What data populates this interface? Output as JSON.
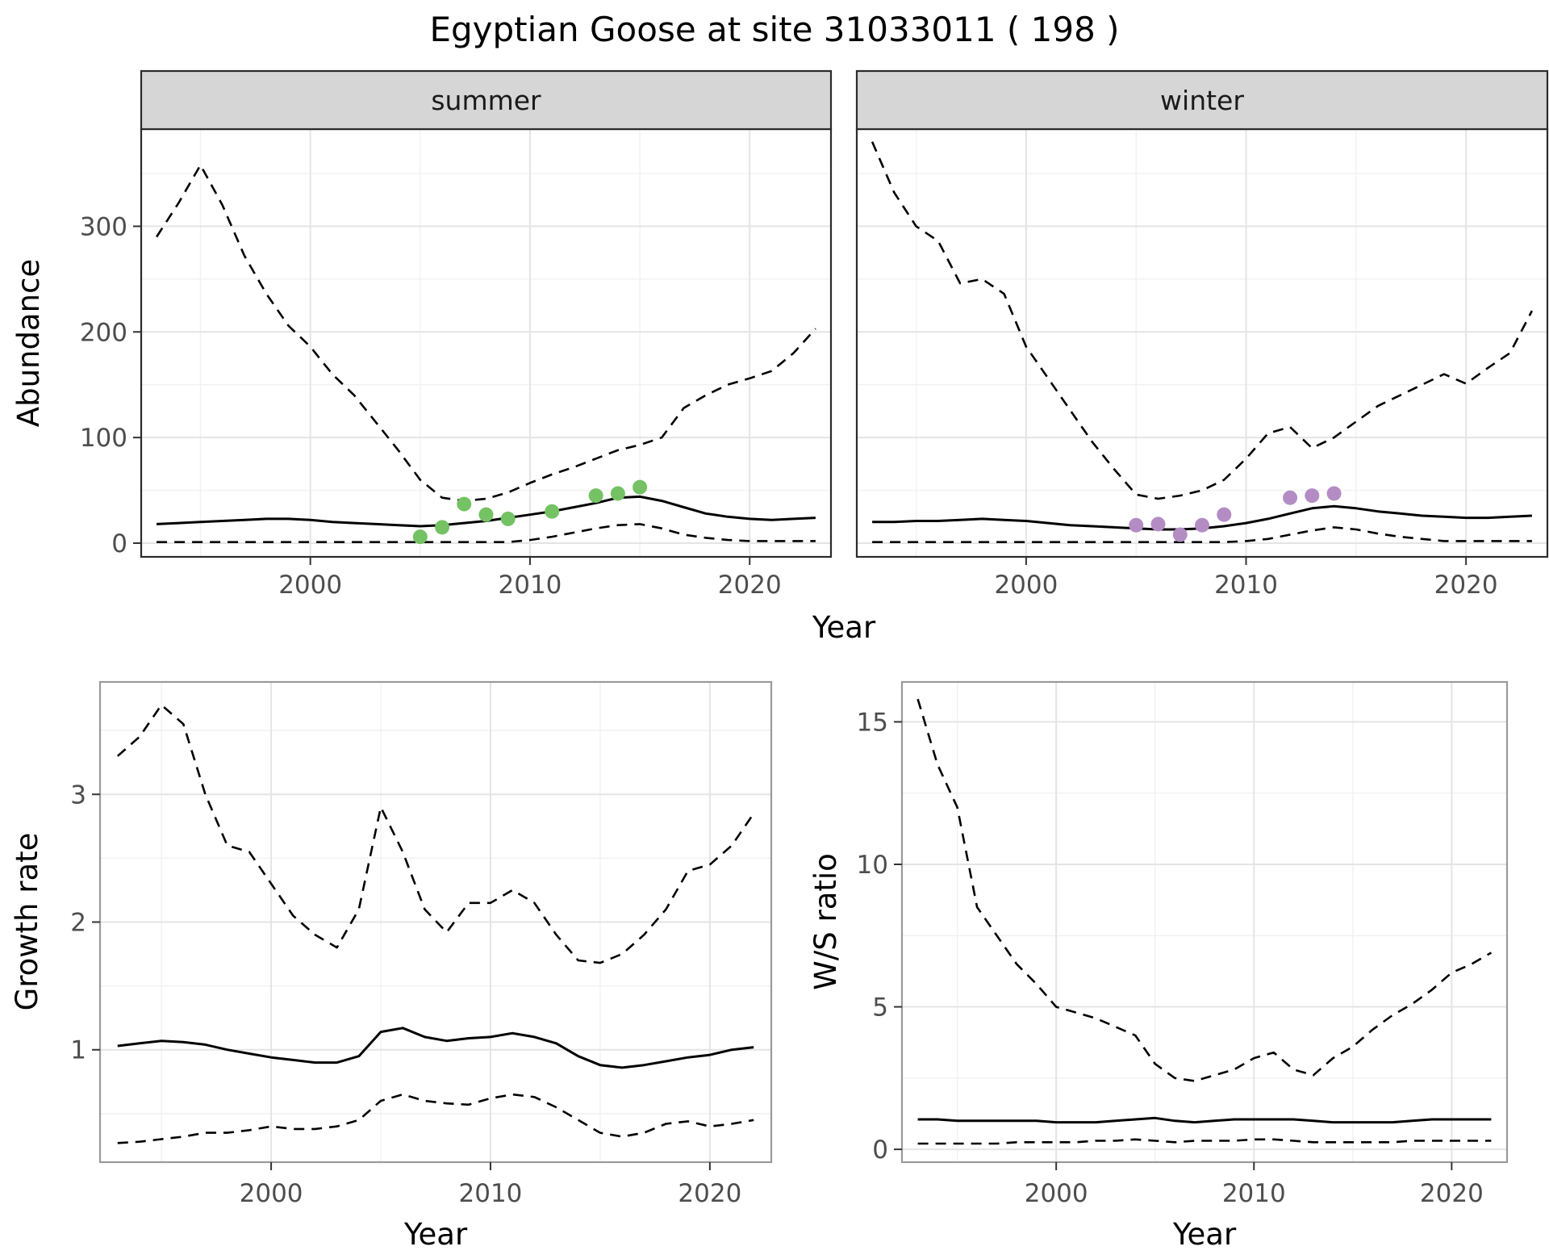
{
  "title": "Egyptian Goose at site 31033011 ( 198 )",
  "colors": {
    "summer_points": "#74c264",
    "winter_points": "#b48cc4",
    "line": "#000000",
    "strip_bg": "#d6d6d6",
    "strip_text": "#1a1a1a",
    "grid_major": "#e4e4e4",
    "grid_minor": "#f1f1f1",
    "tick_label": "#4d4d4d",
    "panel_border_top": "#2b2b2b",
    "panel_border_bottom": "#9a9a9a"
  },
  "chart_data": [
    {
      "id": "abundance-summer",
      "type": "line",
      "facet": "summer",
      "xlabel": "Year",
      "ylabel": "Abundance",
      "xlim": [
        1992.3,
        2023.7
      ],
      "ylim": [
        -13,
        392
      ],
      "xticks": [
        2000,
        2010,
        2020
      ],
      "yticks": [
        0,
        100,
        200,
        300
      ],
      "xticks_minor": [
        1995,
        2005,
        2015
      ],
      "yticks_minor": [
        50,
        150,
        250,
        350
      ],
      "x": [
        1993,
        1994,
        1995,
        1996,
        1997,
        1998,
        1999,
        2000,
        2001,
        2002,
        2003,
        2004,
        2005,
        2006,
        2007,
        2008,
        2009,
        2010,
        2011,
        2012,
        2013,
        2014,
        2015,
        2016,
        2017,
        2018,
        2019,
        2020,
        2021,
        2022,
        2023
      ],
      "series": [
        {
          "name": "upper-95ci",
          "style": "dashed",
          "y": [
            290,
            322,
            358,
            320,
            272,
            236,
            206,
            186,
            160,
            140,
            114,
            88,
            60,
            43,
            40,
            42,
            48,
            57,
            65,
            72,
            80,
            88,
            93,
            100,
            128,
            140,
            150,
            156,
            163,
            180,
            203
          ]
        },
        {
          "name": "modelled-median",
          "style": "solid",
          "y": [
            18,
            19,
            20,
            21,
            22,
            23,
            23,
            22,
            20,
            19,
            18,
            17,
            16,
            17,
            19,
            21,
            24,
            27,
            30,
            34,
            38,
            43,
            44,
            40,
            34,
            28,
            25,
            23,
            22,
            23,
            24
          ]
        },
        {
          "name": "lower-95ci",
          "style": "dashed",
          "y": [
            1,
            1,
            1,
            1,
            1,
            1,
            1,
            1,
            1,
            1,
            1,
            1,
            1,
            1,
            1,
            1,
            1,
            3,
            6,
            10,
            14,
            17,
            18,
            14,
            8,
            5,
            3,
            2,
            2,
            2,
            2
          ]
        },
        {
          "name": "observed-counts",
          "style": "points",
          "color": "#74c264",
          "x": [
            2005,
            2006,
            2007,
            2008,
            2009,
            2011,
            2013,
            2014,
            2015
          ],
          "y": [
            6,
            15,
            37,
            27,
            23,
            30,
            45,
            47,
            53
          ]
        }
      ]
    },
    {
      "id": "abundance-winter",
      "type": "line",
      "facet": "winter",
      "xlabel": "",
      "ylabel": "",
      "xlim": [
        1992.3,
        2023.7
      ],
      "ylim": [
        -13,
        392
      ],
      "xticks": [
        2000,
        2010,
        2020
      ],
      "yticks": [
        0,
        100,
        200,
        300
      ],
      "xticks_minor": [
        1995,
        2005,
        2015
      ],
      "yticks_minor": [
        50,
        150,
        250,
        350
      ],
      "x": [
        1993,
        1994,
        1995,
        1996,
        1997,
        1998,
        1999,
        2000,
        2001,
        2002,
        2003,
        2004,
        2005,
        2006,
        2007,
        2008,
        2009,
        2010,
        2011,
        2012,
        2013,
        2014,
        2015,
        2016,
        2017,
        2018,
        2019,
        2020,
        2021,
        2022,
        2023
      ],
      "series": [
        {
          "name": "upper-95ci",
          "style": "dashed",
          "y": [
            380,
            332,
            300,
            286,
            246,
            250,
            236,
            186,
            156,
            126,
            96,
            70,
            46,
            42,
            45,
            50,
            60,
            80,
            104,
            110,
            90,
            100,
            115,
            130,
            140,
            150,
            160,
            151,
            166,
            180,
            220
          ]
        },
        {
          "name": "modelled-median",
          "style": "solid",
          "y": [
            20,
            20,
            21,
            21,
            22,
            23,
            22,
            21,
            19,
            17,
            16,
            15,
            14,
            13,
            13,
            14,
            16,
            19,
            23,
            28,
            33,
            35,
            33,
            30,
            28,
            26,
            25,
            24,
            24,
            25,
            26
          ]
        },
        {
          "name": "lower-95ci",
          "style": "dashed",
          "y": [
            1,
            1,
            1,
            1,
            1,
            1,
            1,
            1,
            1,
            1,
            1,
            1,
            1,
            1,
            1,
            1,
            1,
            2,
            4,
            8,
            12,
            15,
            13,
            9,
            6,
            4,
            2,
            2,
            2,
            2,
            2
          ]
        },
        {
          "name": "observed-counts",
          "style": "points",
          "color": "#b48cc4",
          "x": [
            2005,
            2006,
            2007,
            2008,
            2009,
            2012,
            2013,
            2014
          ],
          "y": [
            17,
            18,
            8,
            17,
            27,
            43,
            45,
            47
          ]
        }
      ]
    },
    {
      "id": "growth-rate",
      "type": "line",
      "facet": "",
      "xlabel": "Year",
      "ylabel": "Growth rate",
      "xlim": [
        1992.2,
        2022.8
      ],
      "ylim": [
        0.12,
        3.88
      ],
      "xticks": [
        2000,
        2010,
        2020
      ],
      "yticks": [
        1,
        2,
        3
      ],
      "xticks_minor": [
        1995,
        2005,
        2015
      ],
      "yticks_minor": [
        0.5,
        1.5,
        2.5,
        3.5
      ],
      "x": [
        1993,
        1994,
        1995,
        1996,
        1997,
        1998,
        1999,
        2000,
        2001,
        2002,
        2003,
        2004,
        2005,
        2006,
        2007,
        2008,
        2009,
        2010,
        2011,
        2012,
        2013,
        2014,
        2015,
        2016,
        2017,
        2018,
        2019,
        2020,
        2021,
        2022
      ],
      "series": [
        {
          "name": "upper-95ci",
          "style": "dashed",
          "y": [
            3.3,
            3.45,
            3.7,
            3.55,
            3.0,
            2.6,
            2.55,
            2.3,
            2.05,
            1.9,
            1.8,
            2.1,
            2.9,
            2.55,
            2.1,
            1.92,
            2.15,
            2.15,
            2.25,
            2.15,
            1.9,
            1.7,
            1.68,
            1.75,
            1.9,
            2.1,
            2.4,
            2.45,
            2.6,
            2.85
          ]
        },
        {
          "name": "modelled-median",
          "style": "solid",
          "y": [
            1.03,
            1.05,
            1.07,
            1.06,
            1.04,
            1.0,
            0.97,
            0.94,
            0.92,
            0.9,
            0.9,
            0.95,
            1.14,
            1.17,
            1.1,
            1.07,
            1.09,
            1.1,
            1.13,
            1.1,
            1.05,
            0.95,
            0.88,
            0.86,
            0.88,
            0.91,
            0.94,
            0.96,
            1.0,
            1.02
          ]
        },
        {
          "name": "lower-95ci",
          "style": "dashed",
          "y": [
            0.27,
            0.28,
            0.3,
            0.32,
            0.35,
            0.35,
            0.37,
            0.4,
            0.38,
            0.38,
            0.4,
            0.45,
            0.6,
            0.65,
            0.6,
            0.58,
            0.57,
            0.62,
            0.65,
            0.63,
            0.55,
            0.45,
            0.35,
            0.32,
            0.35,
            0.42,
            0.44,
            0.4,
            0.42,
            0.45
          ]
        }
      ]
    },
    {
      "id": "ws-ratio",
      "type": "line",
      "facet": "",
      "xlabel": "Year",
      "ylabel": "W/S ratio",
      "xlim": [
        1992.2,
        2022.8
      ],
      "ylim": [
        -0.45,
        16.4
      ],
      "xticks": [
        2000,
        2010,
        2020
      ],
      "yticks": [
        0,
        5,
        10,
        15
      ],
      "xticks_minor": [
        1995,
        2005,
        2015
      ],
      "yticks_minor": [
        2.5,
        7.5,
        12.5
      ],
      "x": [
        1993,
        1994,
        1995,
        1996,
        1997,
        1998,
        1999,
        2000,
        2001,
        2002,
        2003,
        2004,
        2005,
        2006,
        2007,
        2008,
        2009,
        2010,
        2011,
        2012,
        2013,
        2014,
        2015,
        2016,
        2017,
        2018,
        2019,
        2020,
        2021,
        2022
      ],
      "series": [
        {
          "name": "upper-95ci",
          "style": "dashed",
          "y": [
            15.8,
            13.5,
            12.0,
            8.5,
            7.5,
            6.5,
            5.8,
            5.0,
            4.8,
            4.6,
            4.3,
            4.0,
            3.0,
            2.5,
            2.4,
            2.6,
            2.8,
            3.2,
            3.4,
            2.8,
            2.6,
            3.2,
            3.6,
            4.2,
            4.7,
            5.1,
            5.6,
            6.2,
            6.5,
            6.9
          ]
        },
        {
          "name": "modelled-median",
          "style": "solid",
          "y": [
            1.05,
            1.05,
            1.0,
            1.0,
            1.0,
            1.0,
            1.0,
            0.95,
            0.95,
            0.95,
            1.0,
            1.05,
            1.1,
            1.0,
            0.95,
            1.0,
            1.05,
            1.05,
            1.05,
            1.05,
            1.0,
            0.95,
            0.95,
            0.95,
            0.95,
            1.0,
            1.05,
            1.05,
            1.05,
            1.05
          ]
        },
        {
          "name": "lower-95ci",
          "style": "dashed",
          "y": [
            0.2,
            0.2,
            0.2,
            0.2,
            0.2,
            0.25,
            0.25,
            0.25,
            0.25,
            0.3,
            0.3,
            0.35,
            0.3,
            0.25,
            0.3,
            0.3,
            0.3,
            0.35,
            0.35,
            0.3,
            0.25,
            0.25,
            0.25,
            0.25,
            0.25,
            0.3,
            0.3,
            0.3,
            0.3,
            0.3
          ]
        }
      ]
    }
  ]
}
